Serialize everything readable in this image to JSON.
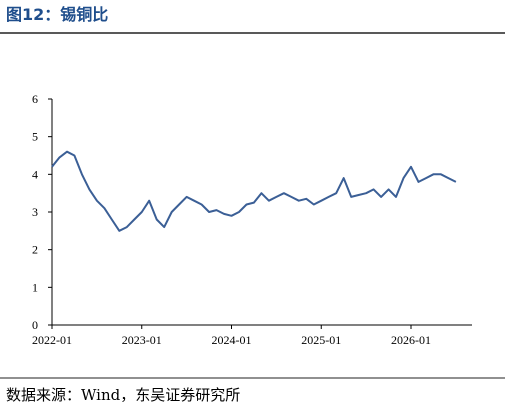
{
  "chart_data": {
    "type": "line",
    "title": "图12：锡铜比",
    "source": "数据来源：Wind，东吴证券研究所",
    "x": [
      "2022-01",
      null,
      null,
      null,
      null,
      null,
      null,
      null,
      null,
      null,
      null,
      null,
      "2023-01",
      null,
      null,
      null,
      null,
      null,
      null,
      null,
      null,
      null,
      null,
      null,
      "2024-01",
      null,
      null,
      null,
      null,
      null,
      null,
      null,
      null,
      null,
      null,
      null,
      "2025-01",
      null,
      null,
      null,
      null,
      null,
      null,
      null,
      null,
      null,
      null,
      null,
      "2026-01",
      null,
      null,
      null,
      null,
      null,
      null
    ],
    "series": [
      {
        "name": "锡铜比",
        "color": "#3b5f96",
        "values": [
          4.2,
          4.45,
          4.6,
          4.5,
          4.0,
          3.6,
          3.3,
          3.1,
          2.8,
          2.5,
          2.6,
          2.8,
          3.0,
          3.3,
          2.8,
          2.6,
          3.0,
          3.2,
          3.4,
          3.3,
          3.2,
          3.0,
          3.05,
          2.95,
          2.9,
          3.0,
          3.2,
          3.25,
          3.5,
          3.3,
          3.4,
          3.5,
          3.4,
          3.3,
          3.35,
          3.2,
          3.3,
          3.4,
          3.5,
          3.9,
          3.4,
          3.45,
          3.5,
          3.6,
          3.4,
          3.6,
          3.4,
          3.9,
          4.2,
          3.8,
          3.9,
          4.0,
          4.0,
          3.9,
          3.8
        ]
      }
    ],
    "ylim": [
      0,
      6
    ],
    "yticks": [
      0,
      1,
      2,
      3,
      4,
      5,
      6
    ]
  }
}
